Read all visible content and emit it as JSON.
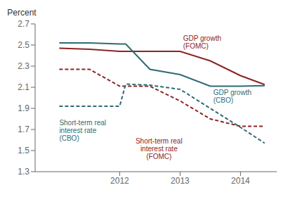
{
  "chart_data": {
    "type": "line",
    "ylabel": "Percent",
    "xlim": [
      2010.6,
      2014.6
    ],
    "xticks": [
      2012,
      2013,
      2014
    ],
    "ylim": [
      1.3,
      2.7
    ],
    "yticks": [
      1.3,
      1.5,
      1.7,
      1.9,
      2.1,
      2.3,
      2.5,
      2.7
    ],
    "grid": false,
    "series": [
      {
        "x": [
          2011.0,
          2011.5,
          2012.0,
          2012.5,
          2013.0,
          2013.5,
          2014.0,
          2014.4
        ],
        "values": [
          2.47,
          2.46,
          2.44,
          2.44,
          2.44,
          2.35,
          2.21,
          2.125
        ],
        "color": "#8B2525",
        "line_style": "solid"
      },
      {
        "x": [
          2011.0,
          2011.5,
          2012.0,
          2012.1,
          2012.5,
          2013.0,
          2013.5,
          2014.0,
          2014.4
        ],
        "values": [
          2.52,
          2.52,
          2.51,
          2.51,
          2.27,
          2.22,
          2.11,
          2.11,
          2.115
        ],
        "color": "#2E6B74",
        "line_style": "solid"
      },
      {
        "x": [
          2011.0,
          2011.5,
          2012.0,
          2012.5,
          2013.0,
          2013.5,
          2014.0,
          2014.4
        ],
        "values": [
          2.27,
          2.27,
          2.11,
          2.11,
          1.97,
          1.8,
          1.73,
          1.73
        ],
        "color": "#8B2525",
        "line_style": "dashed"
      },
      {
        "x": [
          2011.0,
          2011.5,
          2012.0,
          2012.1,
          2012.5,
          2013.0,
          2013.5,
          2014.0,
          2014.4
        ],
        "values": [
          1.92,
          1.92,
          1.92,
          2.13,
          2.12,
          2.08,
          1.9,
          1.72,
          1.57
        ],
        "color": "#2E6B74",
        "line_style": "dashed"
      }
    ],
    "annotations": [
      {
        "text": "GDP growth\n(FOMC)",
        "x": 2013.05,
        "y": 2.445,
        "color": "#8B2525"
      },
      {
        "text": "GDP growth\n(CBO)",
        "x": 2013.55,
        "y": 2.105,
        "color": "#2E6B74"
      },
      {
        "text": "Short-term real\ninterest rate\n(FOMC)",
        "x": 2012.65,
        "y": 1.645,
        "color": "#8B2525"
      },
      {
        "text": "Short-term real\ninterest rate\n(CBO)",
        "x": 2011.0,
        "y": 1.82,
        "color": "#2E6B74"
      }
    ]
  }
}
